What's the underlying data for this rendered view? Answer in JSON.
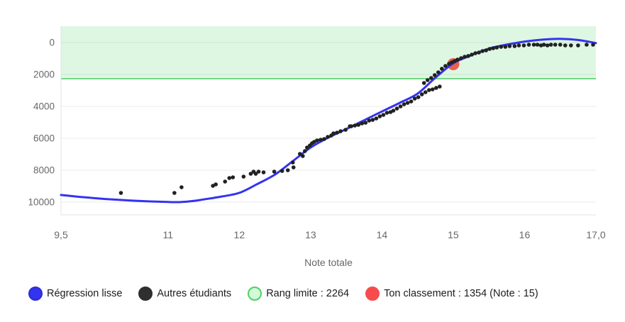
{
  "chart_data": {
    "type": "scatter",
    "title": "",
    "xlabel": "Note totale",
    "ylabel": "",
    "x_range": [
      9.5,
      17
    ],
    "y_domain": [
      -1022,
      10800
    ],
    "y_axis_inverted": true,
    "grid": "horizontal",
    "x_ticks": [
      "9,5",
      "11",
      "12",
      "13",
      "14",
      "15",
      "16",
      "17,0"
    ],
    "x_tick_values": [
      9.5,
      11,
      12,
      13,
      14,
      15,
      16,
      17
    ],
    "y_ticks": [
      "0",
      "2000",
      "4000",
      "6000",
      "8000",
      "10000"
    ],
    "y_tick_values": [
      0,
      2000,
      4000,
      6000,
      8000,
      10000
    ],
    "rank_limit": 2264,
    "user_point": {
      "note": 15,
      "rank": 1354
    },
    "regression": [
      [
        9.5,
        9550
      ],
      [
        9.75,
        9665
      ],
      [
        10.0,
        9760
      ],
      [
        10.25,
        9840
      ],
      [
        10.5,
        9905
      ],
      [
        10.75,
        9955
      ],
      [
        11.0,
        9990
      ],
      [
        11.15,
        10000
      ],
      [
        11.35,
        9930
      ],
      [
        11.5,
        9830
      ],
      [
        11.75,
        9650
      ],
      [
        12.0,
        9420
      ],
      [
        12.25,
        8870
      ],
      [
        12.5,
        8270
      ],
      [
        12.75,
        7430
      ],
      [
        13.0,
        6580
      ],
      [
        13.25,
        5950
      ],
      [
        13.5,
        5420
      ],
      [
        13.75,
        4870
      ],
      [
        14.0,
        4320
      ],
      [
        14.25,
        3780
      ],
      [
        14.5,
        3200
      ],
      [
        14.75,
        2200
      ],
      [
        15.0,
        1300
      ],
      [
        15.25,
        800
      ],
      [
        15.5,
        380
      ],
      [
        15.75,
        130
      ],
      [
        16.0,
        -60
      ],
      [
        16.25,
        -180
      ],
      [
        16.5,
        -230
      ],
      [
        16.75,
        -160
      ],
      [
        17.0,
        30
      ]
    ],
    "students": [
      [
        10.34,
        9422
      ],
      [
        11.09,
        9422
      ],
      [
        11.19,
        9067
      ],
      [
        11.63,
        8978
      ],
      [
        11.67,
        8889
      ],
      [
        11.8,
        8711
      ],
      [
        11.86,
        8489
      ],
      [
        11.91,
        8444
      ],
      [
        12.06,
        8400
      ],
      [
        12.16,
        8222
      ],
      [
        12.2,
        8089
      ],
      [
        12.23,
        8222
      ],
      [
        12.27,
        8089
      ],
      [
        12.34,
        8133
      ],
      [
        12.49,
        8089
      ],
      [
        12.6,
        8044
      ],
      [
        12.68,
        8000
      ],
      [
        12.75,
        7511
      ],
      [
        12.76,
        7822
      ],
      [
        12.85,
        6978
      ],
      [
        12.89,
        7111
      ],
      [
        12.92,
        6800
      ],
      [
        12.95,
        6578
      ],
      [
        12.99,
        6444
      ],
      [
        13.02,
        6311
      ],
      [
        13.05,
        6222
      ],
      [
        13.09,
        6133
      ],
      [
        13.14,
        6089
      ],
      [
        13.19,
        6044
      ],
      [
        13.24,
        5911
      ],
      [
        13.29,
        5822
      ],
      [
        13.32,
        5689
      ],
      [
        13.37,
        5644
      ],
      [
        13.42,
        5556
      ],
      [
        13.49,
        5467
      ],
      [
        13.55,
        5244
      ],
      [
        13.57,
        5244
      ],
      [
        13.62,
        5200
      ],
      [
        13.67,
        5156
      ],
      [
        13.72,
        5067
      ],
      [
        13.77,
        5022
      ],
      [
        13.82,
        4889
      ],
      [
        13.87,
        4844
      ],
      [
        13.92,
        4756
      ],
      [
        13.97,
        4622
      ],
      [
        14.02,
        4533
      ],
      [
        14.07,
        4400
      ],
      [
        14.12,
        4356
      ],
      [
        14.16,
        4267
      ],
      [
        14.21,
        4133
      ],
      [
        14.26,
        4000
      ],
      [
        14.31,
        3867
      ],
      [
        14.36,
        3778
      ],
      [
        14.41,
        3689
      ],
      [
        14.46,
        3511
      ],
      [
        14.51,
        3422
      ],
      [
        14.56,
        3244
      ],
      [
        14.61,
        3111
      ],
      [
        14.66,
        2978
      ],
      [
        14.71,
        2933
      ],
      [
        14.76,
        2844
      ],
      [
        14.81,
        2756
      ],
      [
        14.59,
        2533
      ],
      [
        14.64,
        2356
      ],
      [
        14.69,
        2222
      ],
      [
        14.74,
        2044
      ],
      [
        14.79,
        1867
      ],
      [
        14.84,
        1644
      ],
      [
        14.89,
        1467
      ],
      [
        14.94,
        1333
      ],
      [
        14.98,
        1244
      ],
      [
        15.02,
        1156
      ],
      [
        15.06,
        1067
      ],
      [
        15.11,
        978
      ],
      [
        15.16,
        889
      ],
      [
        15.21,
        844
      ],
      [
        15.26,
        756
      ],
      [
        15.31,
        667
      ],
      [
        15.36,
        622
      ],
      [
        15.41,
        533
      ],
      [
        15.46,
        489
      ],
      [
        15.51,
        400
      ],
      [
        15.56,
        356
      ],
      [
        15.61,
        311
      ],
      [
        15.67,
        267
      ],
      [
        15.73,
        267
      ],
      [
        15.79,
        222
      ],
      [
        15.86,
        222
      ],
      [
        15.92,
        178
      ],
      [
        15.99,
        178
      ],
      [
        16.06,
        133
      ],
      [
        16.13,
        133
      ],
      [
        16.18,
        133
      ],
      [
        16.23,
        178
      ],
      [
        16.27,
        133
      ],
      [
        16.32,
        178
      ],
      [
        16.37,
        133
      ],
      [
        16.43,
        133
      ],
      [
        16.5,
        133
      ],
      [
        16.57,
        178
      ],
      [
        16.65,
        178
      ],
      [
        16.75,
        178
      ],
      [
        16.87,
        133
      ],
      [
        16.96,
        133
      ]
    ],
    "colors": {
      "regression": "#3333f0",
      "students": "#212121",
      "band_fill": "rgba(105,219,124,0.22)",
      "band_line": "#57cf6c",
      "user_point": "#e8604e",
      "grid": "#ebebeb",
      "axis_border": "#e3e3e3",
      "tick_text": "#68686b"
    }
  },
  "legend": {
    "items": [
      {
        "label": "Régression lisse",
        "fill": "#3333f0",
        "border": "#2b2bd8"
      },
      {
        "label": "Autres étudiants",
        "fill": "#2f2f2f",
        "border": "#2f2f2f"
      },
      {
        "label": "Rang limite : 2264",
        "fill": "#d3f9d8",
        "border": "#51cf66"
      },
      {
        "label": "Ton classement : 1354 (Note : 15)",
        "fill": "#f64c4c",
        "border": "#f64c4c"
      }
    ]
  }
}
